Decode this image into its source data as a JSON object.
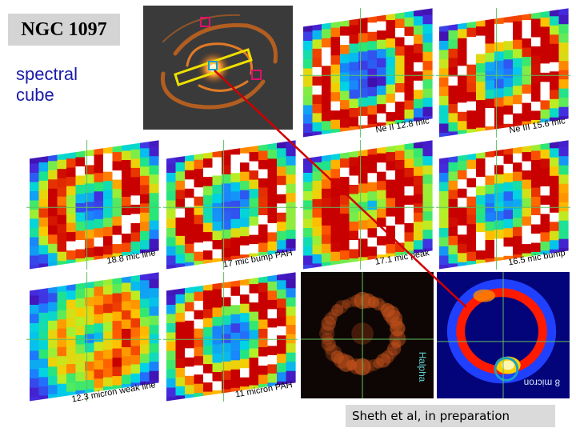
{
  "title": "NGC 1097",
  "subtitle": "spectral cube",
  "credit": "Sheth et al, in preparation",
  "panels": [
    {
      "label": "Ne II 12.8 mic"
    },
    {
      "label": "Ne III 15.6 mic"
    },
    {
      "label": "18.8 mic line"
    },
    {
      "label": "17 mic bump PAH"
    },
    {
      "label": "17.1 mic peak"
    },
    {
      "label": "16.5 mic bump"
    },
    {
      "label": "12.3 micron weak line"
    },
    {
      "label": "11 micron PAH"
    },
    {
      "label": "Halpha"
    },
    {
      "label": "8 micron"
    }
  ],
  "colors": {
    "title_bg": "#d4d4d4",
    "subtitle_text": "#1a1aa8",
    "pointer_line": "#d00000",
    "slit_box": "#f0e000",
    "marker_box": "#e0106a",
    "aperture_box": "#18a0c8",
    "crosshair": "#60c060"
  }
}
